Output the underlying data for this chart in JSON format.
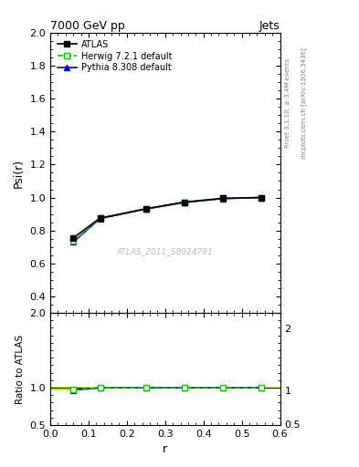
{
  "title": "7000 GeV pp",
  "title_right": "Jets",
  "ylabel_main": "Psi(r)",
  "ylabel_ratio": "Ratio to ATLAS",
  "xlabel": "r",
  "right_label_top": "Rivet 3.1.10, ≥ 3.4M events",
  "right_label_bottom": "mcplots.cern.ch [arXiv:1306.3436]",
  "watermark": "ATLAS_2011_S8924791",
  "main_ylim": [
    0.3,
    2.0
  ],
  "main_yticks": [
    0.4,
    0.6,
    0.8,
    1.0,
    1.2,
    1.4,
    1.6,
    1.8,
    2.0
  ],
  "ratio_ylim": [
    0.5,
    2.0
  ],
  "ratio_yticks": [
    0.5,
    1.0,
    2.0
  ],
  "xlim": [
    0.0,
    0.6
  ],
  "xticks": [
    0.0,
    0.1,
    0.2,
    0.3,
    0.4,
    0.5,
    0.6
  ],
  "atlas_x": [
    0.06,
    0.13,
    0.25,
    0.35,
    0.45,
    0.55
  ],
  "atlas_y": [
    0.755,
    0.875,
    0.932,
    0.972,
    0.995,
    1.0
  ],
  "atlas_color": "#000000",
  "herwig_x": [
    0.06,
    0.13,
    0.25,
    0.35,
    0.45,
    0.55
  ],
  "herwig_y": [
    0.735,
    0.873,
    0.932,
    0.972,
    0.995,
    1.0
  ],
  "herwig_color": "#00cc00",
  "pythia_x": [
    0.06,
    0.13,
    0.25,
    0.35,
    0.45,
    0.55
  ],
  "pythia_y": [
    0.73,
    0.872,
    0.93,
    0.97,
    0.993,
    1.0
  ],
  "pythia_color": "#0000ff",
  "herwig_band_x": [
    0.0,
    0.06,
    0.13,
    0.25,
    0.35,
    0.45,
    0.55,
    0.6
  ],
  "herwig_band_y_low": [
    0.975,
    0.975,
    0.998,
    1.0,
    1.0,
    1.0,
    1.0,
    1.0
  ],
  "herwig_band_y_high": [
    1.01,
    1.01,
    1.002,
    1.002,
    1.002,
    1.001,
    1.001,
    1.001
  ],
  "herwig_band_color": "#bbff00",
  "ratio_herwig_y": [
    0.974,
    0.998,
    1.0,
    1.0,
    1.0,
    1.0
  ],
  "ratio_pythia_y": [
    0.967,
    0.997,
    0.998,
    0.998,
    0.998,
    1.0
  ]
}
